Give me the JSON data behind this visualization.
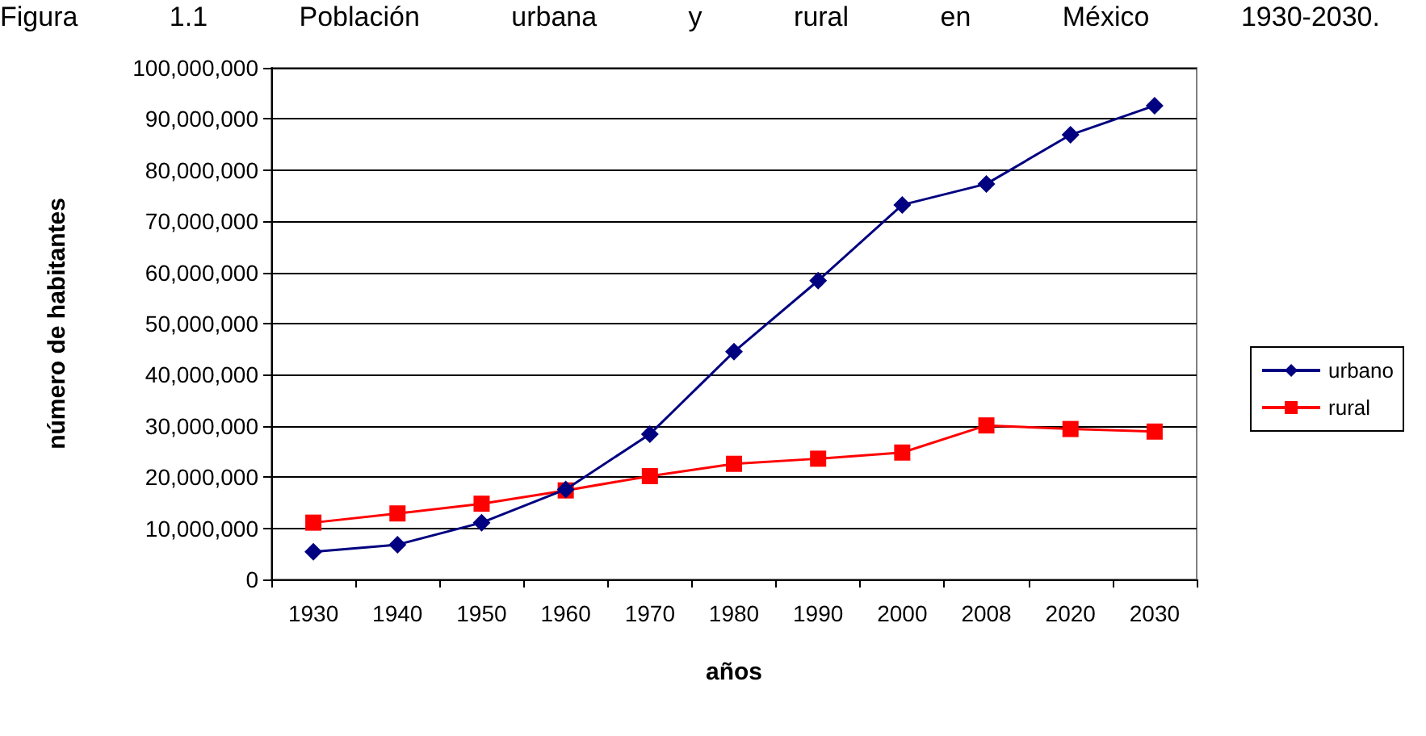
{
  "chart_data": {
    "type": "line",
    "title": "Figura 1.1 Población urbana y rural en México 1930-2030.",
    "xlabel": "años",
    "ylabel": "número de habitantes",
    "categories": [
      "1930",
      "1940",
      "1950",
      "1960",
      "1970",
      "1980",
      "1990",
      "2000",
      "2008",
      "2020",
      "2030"
    ],
    "series": [
      {
        "name": "urbano",
        "color": "#000080",
        "marker": "diamond",
        "values": [
          5400000,
          6800000,
          11100000,
          17600000,
          28400000,
          44500000,
          58400000,
          73200000,
          77300000,
          86900000,
          92600000
        ]
      },
      {
        "name": "rural",
        "color": "#ff0000",
        "marker": "square",
        "values": [
          11100000,
          12900000,
          14800000,
          17400000,
          20200000,
          22600000,
          23600000,
          24800000,
          30100000,
          29400000,
          28900000
        ]
      }
    ],
    "ylim": [
      0,
      100000000
    ],
    "yticks": [
      0,
      {
        "value": 10000000,
        "label": "10,000,000"
      },
      {
        "value": 20000000,
        "label": "20,000,000"
      },
      {
        "value": 30000000,
        "label": "30,000,000"
      },
      {
        "value": 40000000,
        "label": "40,000,000"
      },
      {
        "value": 50000000,
        "label": "50,000,000"
      },
      {
        "value": 60000000,
        "label": "60,000,000"
      },
      {
        "value": 70000000,
        "label": "70,000,000"
      },
      {
        "value": 80000000,
        "label": "80,000,000"
      },
      {
        "value": 90000000,
        "label": "90,000,000"
      },
      {
        "value": 100000000,
        "label": "100,000,000"
      }
    ],
    "grid": "y",
    "legend": "right",
    "line_style": "solid"
  }
}
